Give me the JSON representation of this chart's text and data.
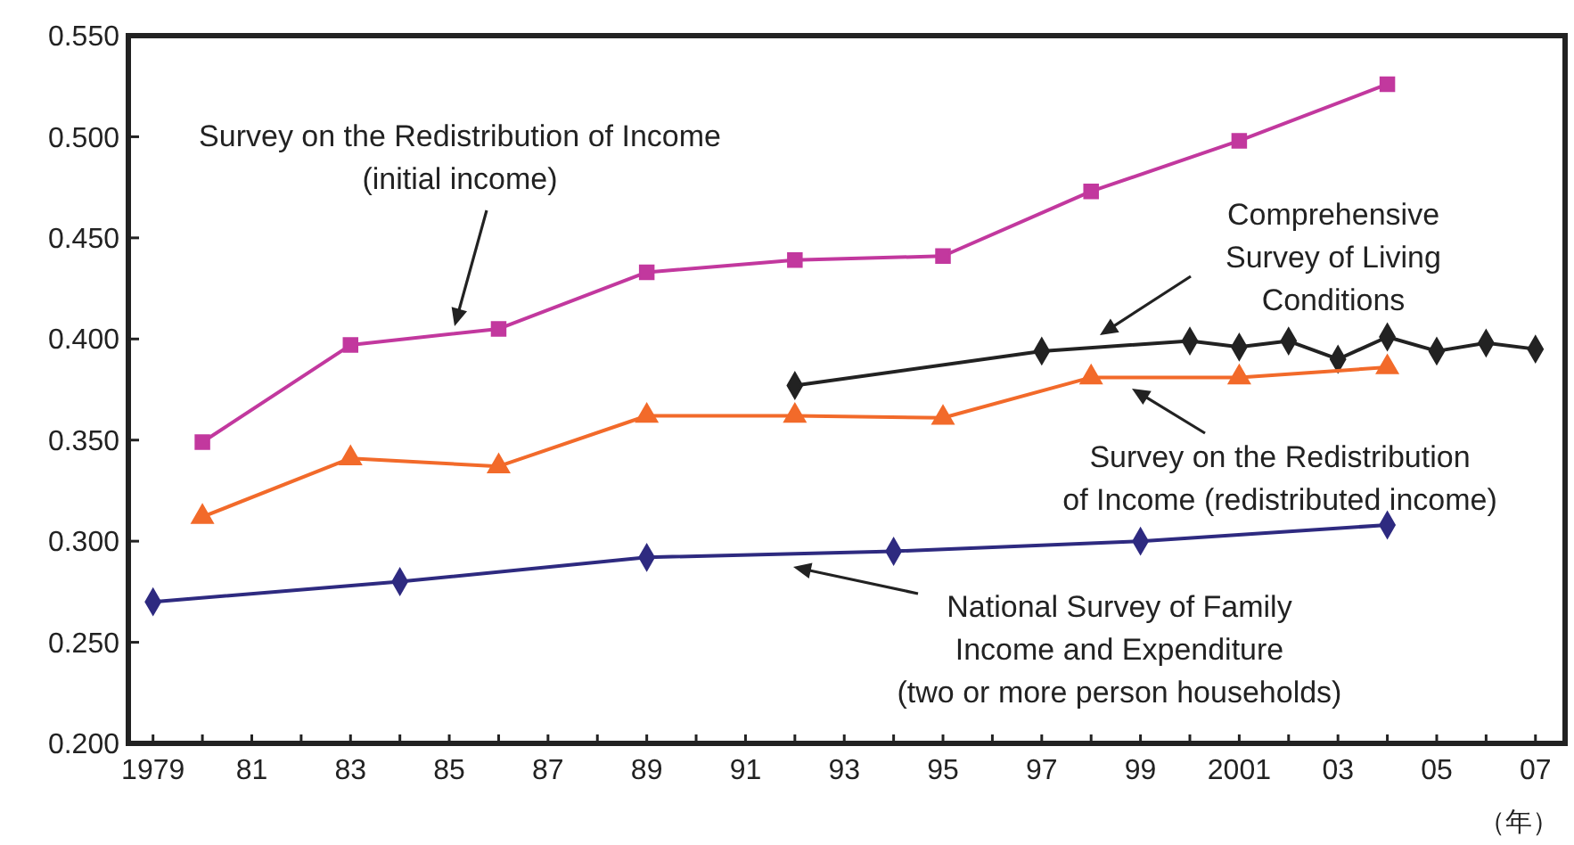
{
  "chart_data": {
    "type": "line",
    "xlabel": "（年）",
    "xlim": [
      1978.5,
      2007.6
    ],
    "ylim": [
      0.2,
      0.55
    ],
    "xticks": [
      {
        "value": 1979,
        "label": "1979"
      },
      {
        "value": 1980,
        "label": null
      },
      {
        "value": 1981,
        "label": "81"
      },
      {
        "value": 1982,
        "label": null
      },
      {
        "value": 1983,
        "label": "83"
      },
      {
        "value": 1984,
        "label": null
      },
      {
        "value": 1985,
        "label": "85"
      },
      {
        "value": 1986,
        "label": null
      },
      {
        "value": 1987,
        "label": "87"
      },
      {
        "value": 1988,
        "label": null
      },
      {
        "value": 1989,
        "label": "89"
      },
      {
        "value": 1990,
        "label": null
      },
      {
        "value": 1991,
        "label": "91"
      },
      {
        "value": 1992,
        "label": null
      },
      {
        "value": 1993,
        "label": "93"
      },
      {
        "value": 1994,
        "label": null
      },
      {
        "value": 1995,
        "label": "95"
      },
      {
        "value": 1996,
        "label": null
      },
      {
        "value": 1997,
        "label": "97"
      },
      {
        "value": 1998,
        "label": null
      },
      {
        "value": 1999,
        "label": "99"
      },
      {
        "value": 2000,
        "label": null
      },
      {
        "value": 2001,
        "label": "2001"
      },
      {
        "value": 2002,
        "label": null
      },
      {
        "value": 2003,
        "label": "03"
      },
      {
        "value": 2004,
        "label": null
      },
      {
        "value": 2005,
        "label": "05"
      },
      {
        "value": 2006,
        "label": null
      },
      {
        "value": 2007,
        "label": "07"
      }
    ],
    "yticks": [
      {
        "value": 0.2,
        "label": "0.200"
      },
      {
        "value": 0.25,
        "label": "0.250"
      },
      {
        "value": 0.3,
        "label": "0.300"
      },
      {
        "value": 0.35,
        "label": "0.350"
      },
      {
        "value": 0.4,
        "label": "0.400"
      },
      {
        "value": 0.45,
        "label": "0.450"
      },
      {
        "value": 0.5,
        "label": "0.500"
      },
      {
        "value": 0.55,
        "label": "0.550"
      }
    ],
    "annotations": [
      "Survey on the Redistribution of Income\n(initial income)",
      "Comprehensive\nSurvey of Living\nConditions",
      "Survey on the Redistribution\nof Income (redistributed income)",
      "National Survey of Family\nIncome and Expenditure\n(two or more person households)"
    ],
    "grid": false,
    "line_style": "solid",
    "series": [
      {
        "color": "#c2389e",
        "marker": "square",
        "x": [
          1980,
          1983,
          1986,
          1989,
          1992,
          1995,
          1998,
          2001,
          2004
        ],
        "values": [
          0.349,
          0.397,
          0.405,
          0.433,
          0.439,
          0.441,
          0.473,
          0.498,
          0.526
        ]
      },
      {
        "color": "#222222",
        "marker": "diamond",
        "x": [
          1992,
          1997,
          2000,
          2001,
          2002,
          2003,
          2004,
          2005,
          2006,
          2007
        ],
        "values": [
          0.377,
          0.394,
          0.399,
          0.396,
          0.399,
          0.39,
          0.401,
          0.394,
          0.398,
          0.395
        ]
      },
      {
        "color": "#f26a2a",
        "marker": "triangle",
        "x": [
          1980,
          1983,
          1986,
          1989,
          1992,
          1995,
          1998,
          2001,
          2004
        ],
        "values": [
          0.312,
          0.341,
          0.337,
          0.362,
          0.362,
          0.361,
          0.381,
          0.381,
          0.386
        ]
      },
      {
        "color": "#2e2a80",
        "marker": "diamond",
        "x": [
          1979,
          1984,
          1989,
          1994,
          1999,
          2004
        ],
        "values": [
          0.27,
          0.28,
          0.292,
          0.295,
          0.3,
          0.308
        ]
      }
    ]
  }
}
